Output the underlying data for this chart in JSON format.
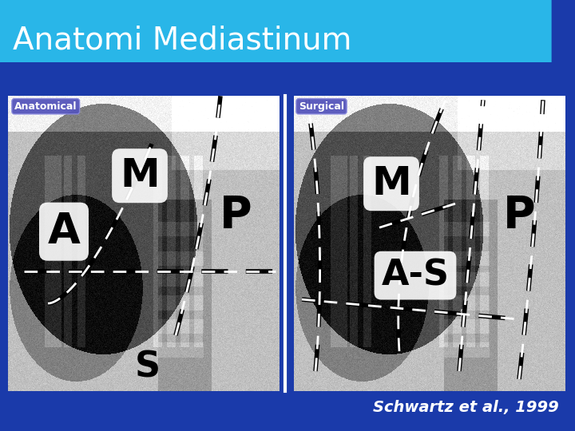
{
  "title": "Anatomi Mediastinum",
  "title_fontsize": 28,
  "title_color": "white",
  "title_bg_color": "#29b6e8",
  "background_color": "#1a3aaa",
  "label_left": "Anatomical",
  "label_right": "Surgical",
  "label_bg": "#5555bb",
  "label_text_color": "white",
  "citation": "Schwartz et al., 1999",
  "citation_color": "white",
  "citation_fontsize": 14,
  "img_bg": "#1e1e1e",
  "blue_bottom": "#1a3aaa",
  "white_divider": "#ffffff"
}
